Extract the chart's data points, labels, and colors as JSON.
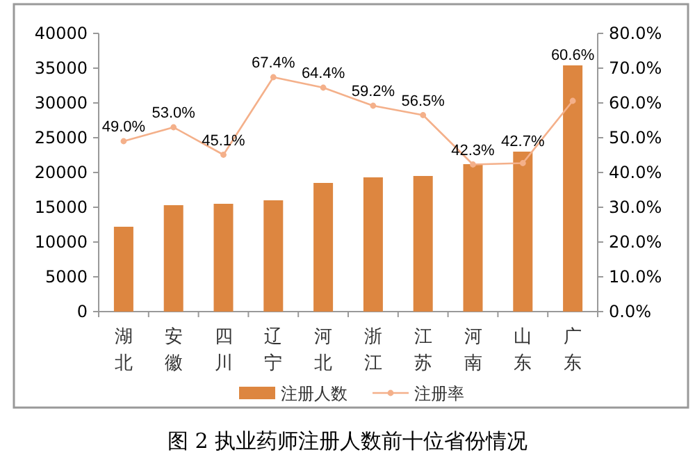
{
  "chart_data": {
    "type": "bar",
    "title": "图 2 执业药师注册人数前十位省份情况",
    "categories": [
      "湖北",
      "安徽",
      "四川",
      "辽宁",
      "河北",
      "浙江",
      "江苏",
      "河南",
      "山东",
      "广东"
    ],
    "series": [
      {
        "name": "注册人数",
        "color": "#dd8640",
        "values": [
          12200,
          15300,
          15500,
          16000,
          18500,
          19300,
          19500,
          21200,
          23000,
          35400
        ]
      },
      {
        "name": "注册率",
        "type": "line",
        "axis": "y2",
        "color": "#f4b08a",
        "marker": "circle",
        "values": [
          49.0,
          53.0,
          45.1,
          67.4,
          64.4,
          59.2,
          56.5,
          42.3,
          42.7,
          60.6
        ],
        "value_labels": [
          "49.0%",
          "53.0%",
          "45.1%",
          "67.4%",
          "64.4%",
          "59.2%",
          "56.5%",
          "42.3%",
          "42.7%",
          "60.6%"
        ]
      }
    ],
    "ylim": [
      0,
      40000
    ],
    "yticks": [
      0,
      5000,
      10000,
      15000,
      20000,
      25000,
      30000,
      35000,
      40000
    ],
    "y2lim": [
      0,
      80
    ],
    "y2ticks": [
      {
        "value": 0,
        "label": "0.0%"
      },
      {
        "value": 10,
        "label": "10.0%"
      },
      {
        "value": 20,
        "label": "20.0%"
      },
      {
        "value": 30,
        "label": "30.0%"
      },
      {
        "value": 40,
        "label": "40.0%"
      },
      {
        "value": 50,
        "label": "50.0%"
      },
      {
        "value": 60,
        "label": "60.0%"
      },
      {
        "value": 70,
        "label": "70.0%"
      },
      {
        "value": 80,
        "label": "80.0%"
      }
    ],
    "grid": false,
    "legend": "bottom"
  }
}
